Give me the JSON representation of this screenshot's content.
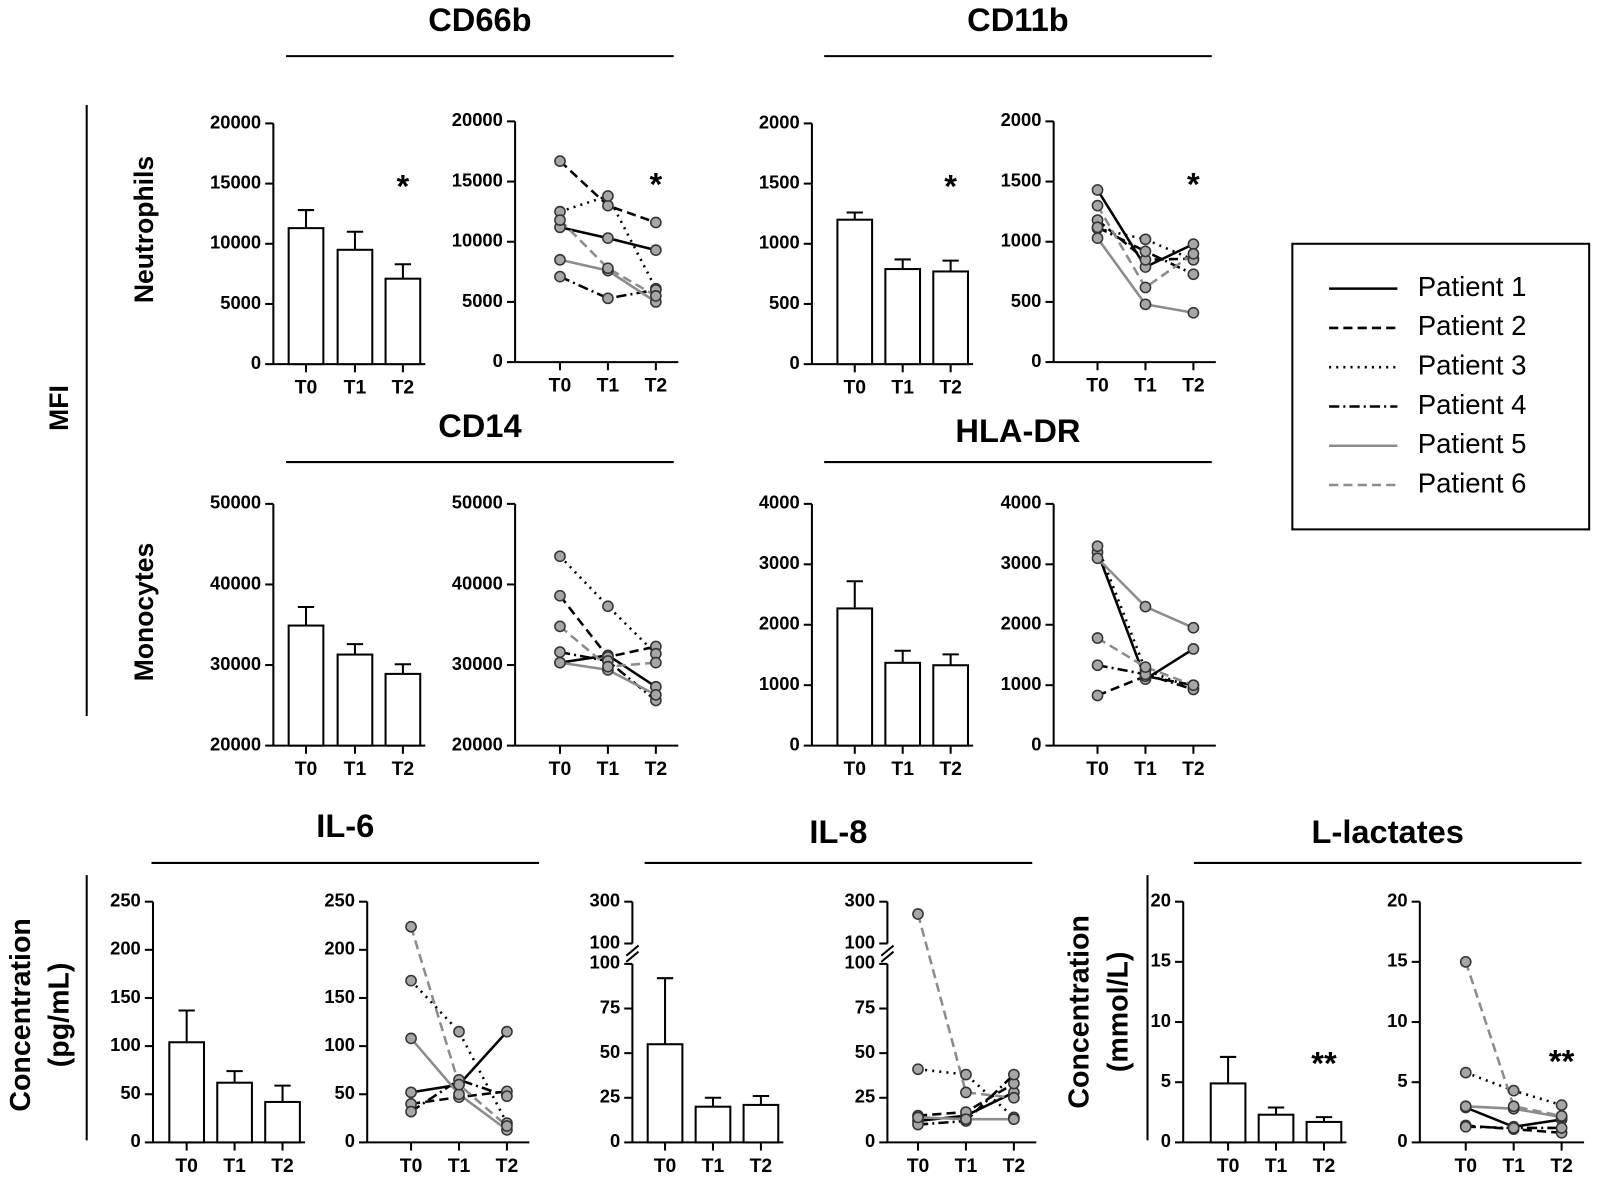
{
  "labels": {
    "mfi": "MFI",
    "neutrophils": "Neutrophils",
    "monocytes": "Monocytes",
    "conc_pg": [
      "Concentration",
      "(pg/mL)"
    ],
    "conc_mmol": [
      "Concentration",
      "(mmol/L)"
    ]
  },
  "chart_data": [
    {
      "type": "bar",
      "title": "CD66b",
      "categories": [
        "T0",
        "T1",
        "T2"
      ],
      "values": [
        11300,
        9500,
        7100
      ],
      "errors": [
        1500,
        1500,
        1200
      ],
      "ylim": [
        0,
        20000
      ],
      "yticks": [
        0,
        5000,
        10000,
        15000,
        20000
      ],
      "annotation": "*"
    },
    {
      "type": "line",
      "categories": [
        "T0",
        "T1",
        "T2"
      ],
      "ylim": [
        0,
        20000
      ],
      "yticks": [
        0,
        5000,
        10000,
        15000,
        20000
      ],
      "annotation": "*",
      "series": [
        {
          "name": "Patient 1",
          "color": "#000000",
          "dash": "solid",
          "values": [
            11200,
            10300,
            9300
          ]
        },
        {
          "name": "Patient 2",
          "color": "#000000",
          "dash": "dashed",
          "values": [
            16700,
            13000,
            11600
          ]
        },
        {
          "name": "Patient 3",
          "color": "#000000",
          "dash": "dotted",
          "values": [
            12500,
            13800,
            6100
          ]
        },
        {
          "name": "Patient 4",
          "color": "#000000",
          "dash": "dashdot",
          "values": [
            7100,
            5300,
            6000
          ]
        },
        {
          "name": "Patient 5",
          "color": "#8c8c8c",
          "dash": "solid",
          "values": [
            8500,
            7600,
            5000
          ]
        },
        {
          "name": "Patient 6",
          "color": "#8c8c8c",
          "dash": "dashed",
          "values": [
            11800,
            7800,
            5500
          ]
        }
      ]
    },
    {
      "type": "bar",
      "title": "CD11b",
      "categories": [
        "T0",
        "T1",
        "T2"
      ],
      "values": [
        1200,
        790,
        770
      ],
      "errors": [
        60,
        80,
        90
      ],
      "ylim": [
        0,
        2000
      ],
      "yticks": [
        0,
        500,
        1000,
        1500,
        2000
      ],
      "annotation": "*"
    },
    {
      "type": "line",
      "categories": [
        "T0",
        "T1",
        "T2"
      ],
      "ylim": [
        0,
        2000
      ],
      "yticks": [
        0,
        500,
        1000,
        1500,
        2000
      ],
      "annotation": "*",
      "series": [
        {
          "name": "Patient 1",
          "color": "#000000",
          "dash": "solid",
          "values": [
            1430,
            790,
            980
          ]
        },
        {
          "name": "Patient 2",
          "color": "#000000",
          "dash": "dashed",
          "values": [
            1180,
            850,
            860
          ]
        },
        {
          "name": "Patient 3",
          "color": "#000000",
          "dash": "dotted",
          "values": [
            1110,
            1020,
            850
          ]
        },
        {
          "name": "Patient 4",
          "color": "#000000",
          "dash": "dashdot",
          "values": [
            1120,
            920,
            730
          ]
        },
        {
          "name": "Patient 5",
          "color": "#8c8c8c",
          "dash": "solid",
          "values": [
            1030,
            480,
            410
          ]
        },
        {
          "name": "Patient 6",
          "color": "#8c8c8c",
          "dash": "dashed",
          "values": [
            1300,
            620,
            900
          ]
        }
      ]
    },
    {
      "type": "bar",
      "title": "CD14",
      "categories": [
        "T0",
        "T1",
        "T2"
      ],
      "values": [
        34900,
        31300,
        28900
      ],
      "errors": [
        2300,
        1300,
        1200
      ],
      "ylim": [
        20000,
        50000
      ],
      "yticks": [
        20000,
        30000,
        40000,
        50000
      ]
    },
    {
      "type": "line",
      "categories": [
        "T0",
        "T1",
        "T2"
      ],
      "ylim": [
        20000,
        50000
      ],
      "yticks": [
        20000,
        30000,
        40000,
        50000
      ],
      "series": [
        {
          "name": "Patient 1",
          "color": "#000000",
          "dash": "solid",
          "values": [
            30300,
            31200,
            27300
          ]
        },
        {
          "name": "Patient 2",
          "color": "#000000",
          "dash": "dashed",
          "values": [
            38600,
            31000,
            32300
          ]
        },
        {
          "name": "Patient 3",
          "color": "#000000",
          "dash": "dotted",
          "values": [
            43500,
            37300,
            31400
          ]
        },
        {
          "name": "Patient 4",
          "color": "#000000",
          "dash": "dashdot",
          "values": [
            31600,
            30500,
            25600
          ]
        },
        {
          "name": "Patient 5",
          "color": "#8c8c8c",
          "dash": "solid",
          "values": [
            30300,
            29400,
            26300
          ]
        },
        {
          "name": "Patient 6",
          "color": "#8c8c8c",
          "dash": "dashed",
          "values": [
            34800,
            29800,
            30300
          ]
        }
      ]
    },
    {
      "type": "bar",
      "title": "HLA-DR",
      "categories": [
        "T0",
        "T1",
        "T2"
      ],
      "values": [
        2270,
        1370,
        1330
      ],
      "errors": [
        450,
        200,
        180
      ],
      "ylim": [
        0,
        4000
      ],
      "yticks": [
        0,
        1000,
        2000,
        3000,
        4000
      ]
    },
    {
      "type": "line",
      "categories": [
        "T0",
        "T1",
        "T2"
      ],
      "ylim": [
        0,
        4000
      ],
      "yticks": [
        0,
        1000,
        2000,
        3000,
        4000
      ],
      "series": [
        {
          "name": "Patient 1",
          "color": "#000000",
          "dash": "solid",
          "values": [
            3200,
            1100,
            1600
          ]
        },
        {
          "name": "Patient 2",
          "color": "#000000",
          "dash": "dashed",
          "values": [
            830,
            1150,
            1000
          ]
        },
        {
          "name": "Patient 3",
          "color": "#000000",
          "dash": "dotted",
          "values": [
            3300,
            1250,
            950
          ]
        },
        {
          "name": "Patient 4",
          "color": "#000000",
          "dash": "dashdot",
          "values": [
            1330,
            1180,
            930
          ]
        },
        {
          "name": "Patient 5",
          "color": "#8c8c8c",
          "dash": "solid",
          "values": [
            3100,
            2300,
            1950
          ]
        },
        {
          "name": "Patient 6",
          "color": "#8c8c8c",
          "dash": "dashed",
          "values": [
            1780,
            1300,
            1000
          ]
        }
      ]
    },
    {
      "type": "bar",
      "title": "IL-6",
      "categories": [
        "T0",
        "T1",
        "T2"
      ],
      "values": [
        104,
        62,
        42
      ],
      "errors": [
        33,
        12,
        17
      ],
      "ylim": [
        0,
        250
      ],
      "yticks": [
        0,
        50,
        100,
        150,
        200,
        250
      ]
    },
    {
      "type": "line",
      "categories": [
        "T0",
        "T1",
        "T2"
      ],
      "ylim": [
        0,
        250
      ],
      "yticks": [
        0,
        50,
        100,
        150,
        200,
        250
      ],
      "series": [
        {
          "name": "Patient 1",
          "color": "#000000",
          "dash": "solid",
          "values": [
            52,
            60,
            115
          ]
        },
        {
          "name": "Patient 2",
          "color": "#000000",
          "dash": "dashed",
          "values": [
            40,
            47,
            53
          ]
        },
        {
          "name": "Patient 3",
          "color": "#000000",
          "dash": "dotted",
          "values": [
            168,
            115,
            20
          ]
        },
        {
          "name": "Patient 4",
          "color": "#000000",
          "dash": "dashdot",
          "values": [
            32,
            65,
            48
          ]
        },
        {
          "name": "Patient 5",
          "color": "#8c8c8c",
          "dash": "solid",
          "values": [
            108,
            50,
            13
          ]
        },
        {
          "name": "Patient 6",
          "color": "#8c8c8c",
          "dash": "dashed",
          "values": [
            224,
            60,
            17
          ]
        }
      ]
    },
    {
      "type": "bar",
      "title": "IL-8",
      "categories": [
        "T0",
        "T1",
        "T2"
      ],
      "values": [
        55,
        20,
        21
      ],
      "errors": [
        37,
        5,
        5
      ],
      "ylim": [
        0,
        300
      ],
      "ybreak": 100,
      "yticks": [
        0,
        25,
        50,
        75,
        100
      ],
      "yticks_upper": [
        100,
        300
      ]
    },
    {
      "type": "line",
      "categories": [
        "T0",
        "T1",
        "T2"
      ],
      "ylim": [
        0,
        300
      ],
      "ybreak": 100,
      "yticks": [
        0,
        25,
        50,
        75,
        100
      ],
      "yticks_upper": [
        100,
        300
      ],
      "series": [
        {
          "name": "Patient 1",
          "color": "#000000",
          "dash": "solid",
          "values": [
            12,
            15,
            28
          ]
        },
        {
          "name": "Patient 2",
          "color": "#000000",
          "dash": "dashed",
          "values": [
            15,
            17,
            33
          ]
        },
        {
          "name": "Patient 3",
          "color": "#000000",
          "dash": "dotted",
          "values": [
            41,
            38,
            14
          ]
        },
        {
          "name": "Patient 4",
          "color": "#000000",
          "dash": "dashdot",
          "values": [
            10,
            12,
            38
          ]
        },
        {
          "name": "Patient 5",
          "color": "#8c8c8c",
          "dash": "solid",
          "values": [
            14,
            13,
            13
          ]
        },
        {
          "name": "Patient 6",
          "color": "#8c8c8c",
          "dash": "dashed",
          "values": [
            241,
            28,
            25
          ]
        }
      ]
    },
    {
      "type": "bar",
      "title": "L-lactates",
      "categories": [
        "T0",
        "T1",
        "T2"
      ],
      "values": [
        4.9,
        2.3,
        1.7
      ],
      "errors": [
        2.2,
        0.6,
        0.4
      ],
      "ylim": [
        0,
        20
      ],
      "yticks": [
        0,
        5,
        10,
        15,
        20
      ],
      "annotation": "**"
    },
    {
      "type": "line",
      "categories": [
        "T0",
        "T1",
        "T2"
      ],
      "ylim": [
        0,
        20
      ],
      "yticks": [
        0,
        5,
        10,
        15,
        20
      ],
      "annotation": "**",
      "series": [
        {
          "name": "Patient 1",
          "color": "#000000",
          "dash": "solid",
          "values": [
            2.9,
            1.3,
            1.9
          ]
        },
        {
          "name": "Patient 2",
          "color": "#000000",
          "dash": "dashed",
          "values": [
            1.4,
            1.1,
            0.8
          ]
        },
        {
          "name": "Patient 3",
          "color": "#000000",
          "dash": "dotted",
          "values": [
            5.8,
            4.3,
            3.1
          ]
        },
        {
          "name": "Patient 4",
          "color": "#000000",
          "dash": "dashdot",
          "values": [
            1.3,
            1.2,
            1.2
          ]
        },
        {
          "name": "Patient 5",
          "color": "#8c8c8c",
          "dash": "solid",
          "values": [
            3.0,
            2.8,
            2.1
          ]
        },
        {
          "name": "Patient 6",
          "color": "#8c8c8c",
          "dash": "dashed",
          "values": [
            15.0,
            3.0,
            2.2
          ]
        }
      ]
    }
  ]
}
